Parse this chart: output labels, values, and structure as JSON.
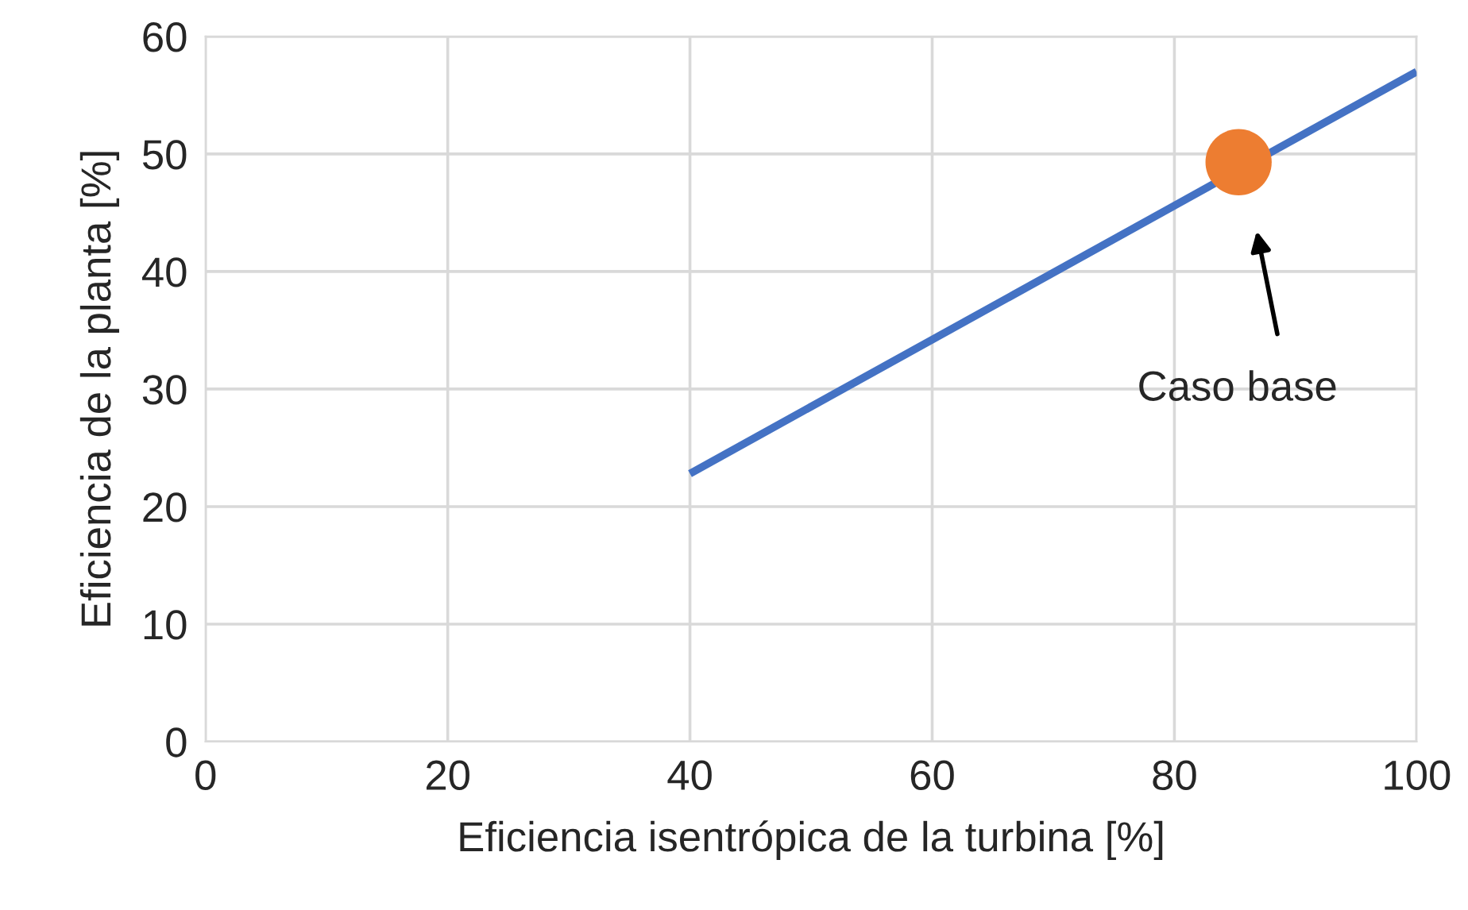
{
  "chart_data": {
    "type": "line",
    "xlabel": "Eficiencia isentrópica de la turbina [%]",
    "ylabel": "Eficiencia de la planta [%]",
    "series": [
      {
        "color": "#4472c4",
        "x": [
          40,
          100
        ],
        "values": [
          22.8,
          57.0
        ]
      },
      {
        "type": "scatter",
        "marker": "circle",
        "color": "#ed7d31",
        "x": [
          85.3
        ],
        "values": [
          49.3
        ]
      }
    ],
    "annotations": [
      "Caso base"
    ],
    "xlim": [
      0,
      100
    ],
    "xticks": [
      0,
      20,
      40,
      60,
      80,
      100
    ],
    "ylim": [
      0,
      60
    ],
    "yticks": [
      0,
      10,
      20,
      30,
      40,
      50,
      60
    ],
    "grid": true
  }
}
